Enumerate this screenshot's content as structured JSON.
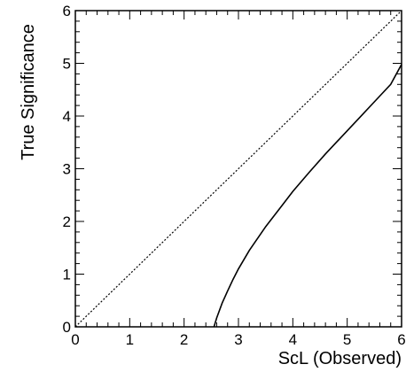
{
  "chart_data": {
    "type": "line",
    "title": "",
    "xlabel": "ScL (Observed)",
    "ylabel": "True Significance",
    "xlim": [
      0,
      6
    ],
    "ylim": [
      0,
      6
    ],
    "grid": false,
    "x_ticks": [
      "0",
      "1",
      "2",
      "3",
      "4",
      "5",
      "6"
    ],
    "y_ticks": [
      "0",
      "1",
      "2",
      "3",
      "4",
      "5",
      "6"
    ],
    "series": [
      {
        "style": "dotted",
        "color": "#000000",
        "x": [
          0,
          6
        ],
        "y": [
          0,
          6
        ]
      },
      {
        "style": "solid",
        "color": "#000000",
        "x": [
          2.55,
          2.6,
          2.7,
          2.8,
          2.9,
          3.0,
          3.2,
          3.5,
          3.8,
          4.0,
          4.3,
          4.6,
          5.0,
          5.3,
          5.6,
          5.8,
          6.0
        ],
        "y": [
          0.0,
          0.17,
          0.45,
          0.68,
          0.9,
          1.1,
          1.45,
          1.9,
          2.3,
          2.57,
          2.93,
          3.28,
          3.72,
          4.05,
          4.38,
          4.6,
          4.98
        ]
      }
    ]
  }
}
